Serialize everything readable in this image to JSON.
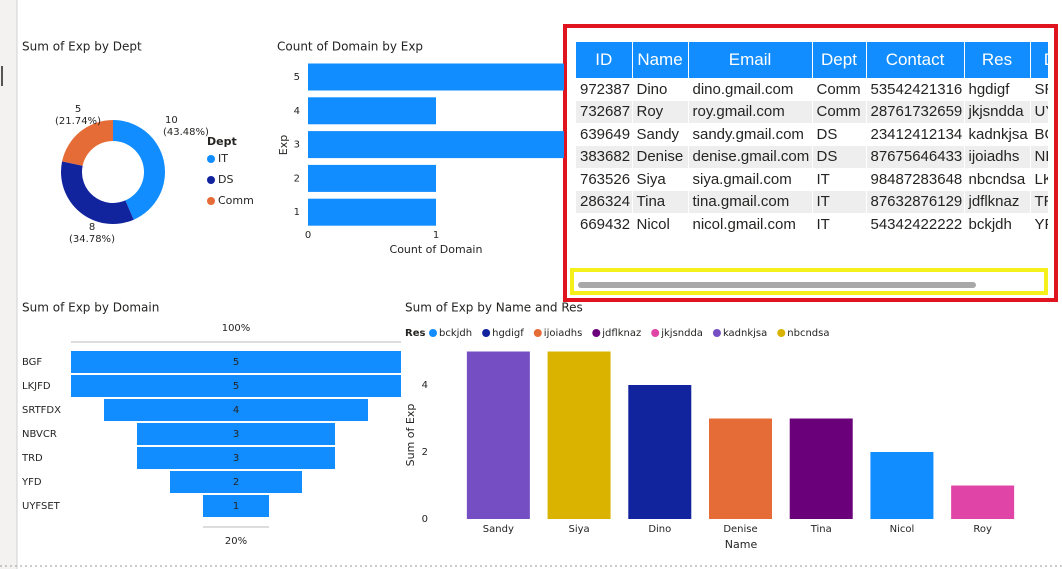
{
  "chart_data": [
    {
      "type": "donut",
      "title": "Sum of Exp by Dept",
      "legend_title": "Dept",
      "categories": [
        "IT",
        "DS",
        "Comm"
      ],
      "values": [
        10,
        8,
        5
      ],
      "percent_labels": [
        "(43.48%)",
        "(34.78%)",
        "(21.74%)"
      ],
      "colors": [
        "#118DFF",
        "#12239E",
        "#E66C37"
      ]
    },
    {
      "type": "hbar",
      "title": "Count of Domain by Exp",
      "x_label": "Count of Domain",
      "y_label": "Exp",
      "categories": [
        "5",
        "4",
        "3",
        "2",
        "1"
      ],
      "values": [
        2,
        1,
        2,
        1,
        1
      ],
      "color": "#118DFF",
      "xlim": [
        0,
        2
      ],
      "xticks": [
        0,
        1
      ]
    },
    {
      "type": "funnel",
      "title": "Sum of Exp by Domain",
      "categories": [
        "BGF",
        "LKJFD",
        "SRTFDX",
        "NBVCR",
        "TRD",
        "YFD",
        "UYFSET"
      ],
      "values": [
        5,
        5,
        4,
        3,
        3,
        2,
        1
      ],
      "color": "#118DFF",
      "top_label": "100%",
      "bottom_label": "20%"
    },
    {
      "type": "column",
      "title": "Sum of Exp by Name and Res",
      "legend_title": "Res",
      "x_label": "Name",
      "y_label": "Sum of Exp",
      "categories": [
        "Sandy",
        "Siya",
        "Dino",
        "Denise",
        "Tina",
        "Nicol",
        "Roy"
      ],
      "series": [
        {
          "name": "bckjdh",
          "color": "#118DFF",
          "values": [
            null,
            null,
            null,
            null,
            null,
            2,
            null
          ]
        },
        {
          "name": "hgdigf",
          "color": "#12239E",
          "values": [
            null,
            null,
            4,
            null,
            null,
            null,
            null
          ]
        },
        {
          "name": "ijoiadhs",
          "color": "#E66C37",
          "values": [
            null,
            null,
            null,
            3,
            null,
            null,
            null
          ]
        },
        {
          "name": "jdflknaz",
          "color": "#6B007B",
          "values": [
            null,
            null,
            null,
            null,
            3,
            null,
            null
          ]
        },
        {
          "name": "jkjsndda",
          "color": "#E044A7",
          "values": [
            null,
            null,
            null,
            null,
            null,
            null,
            1
          ]
        },
        {
          "name": "kadnkjsa",
          "color": "#744EC2",
          "values": [
            5,
            null,
            null,
            null,
            null,
            null,
            null
          ]
        },
        {
          "name": "nbcndsa",
          "color": "#D9B300",
          "values": [
            null,
            5,
            null,
            null,
            null,
            null,
            null
          ]
        }
      ],
      "ylim": [
        0,
        5
      ],
      "yticks": [
        0,
        2,
        4
      ]
    }
  ],
  "table": {
    "columns": [
      "ID",
      "Name",
      "Email",
      "Dept",
      "Contact",
      "Res",
      "Domain"
    ],
    "rows": [
      [
        "972387",
        "Dino",
        "dino.gmail.com",
        "Comm",
        "53542421316",
        "hgdigf",
        "SRTFDX"
      ],
      [
        "732687",
        "Roy",
        "roy.gmail.com",
        "Comm",
        "28761732659",
        "jkjsndda",
        "UYFSET"
      ],
      [
        "639649",
        "Sandy",
        "sandy.gmail.com",
        "DS",
        "23412412134",
        "kadnkjsa",
        "BGF"
      ],
      [
        "383682",
        "Denise",
        "denise.gmail.com",
        "DS",
        "87675646433",
        "ijoiadhs",
        "NBVCR"
      ],
      [
        "763526",
        "Siya",
        "siya.gmail.com",
        "IT",
        "98487283648",
        "nbcndsa",
        "LKJFD"
      ],
      [
        "286324",
        "Tina",
        "tina.gmail.com",
        "IT",
        "87632876129",
        "jdflknaz",
        "TRD"
      ],
      [
        "669432",
        "Nicol",
        "nicol.gmail.com",
        "IT",
        "54342422222",
        "bckjdh",
        "YFD"
      ]
    ]
  }
}
